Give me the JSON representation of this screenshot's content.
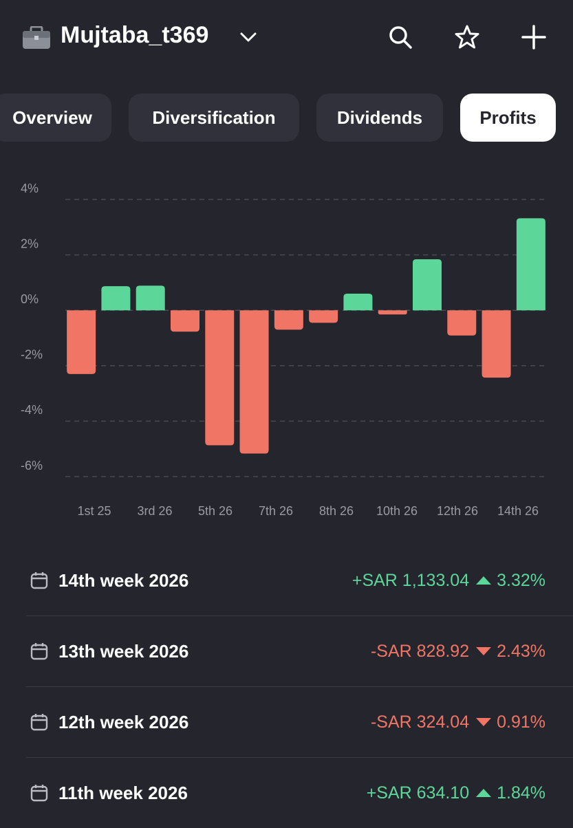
{
  "header": {
    "account": "Mujtaba_t369"
  },
  "tabs": [
    {
      "label": "Overview"
    },
    {
      "label": "Diversification"
    },
    {
      "label": "Dividends"
    },
    {
      "label": "Profits",
      "active": true
    }
  ],
  "chart_data": {
    "type": "bar",
    "values": [
      -2.3,
      0.87,
      0.89,
      -0.77,
      -4.87,
      -5.17,
      -0.7,
      -0.45,
      0.6,
      -0.15,
      1.84,
      -0.91,
      -2.43,
      3.32
    ],
    "x_labels": [
      "1st 25",
      "3rd 26",
      "5th 26",
      "7th 26",
      "8th 26",
      "10th 26",
      "12th 26",
      "14th 26"
    ],
    "ylim": [
      -6,
      4
    ],
    "yticks": [
      {
        "value": -6,
        "label": "-6%"
      },
      {
        "value": -4,
        "label": "-4%"
      },
      {
        "value": -2,
        "label": "-2%"
      },
      {
        "value": 0,
        "label": "0%"
      },
      {
        "value": 2,
        "label": "2%"
      },
      {
        "value": 4,
        "label": "4%"
      }
    ],
    "grid": true,
    "positive_color": "#5cd699",
    "negative_color": "#f07565"
  },
  "weeks": [
    {
      "title": "14th week 2026",
      "amount": "+SAR 1,133.04",
      "percent": "3.32%",
      "direction": "up"
    },
    {
      "title": "13th week 2026",
      "amount": "-SAR 828.92",
      "percent": "2.43%",
      "direction": "down"
    },
    {
      "title": "12th week 2026",
      "amount": "-SAR 324.04",
      "percent": "0.91%",
      "direction": "down"
    },
    {
      "title": "11th week 2026",
      "amount": "+SAR 634.10",
      "percent": "1.84%",
      "direction": "up"
    }
  ]
}
